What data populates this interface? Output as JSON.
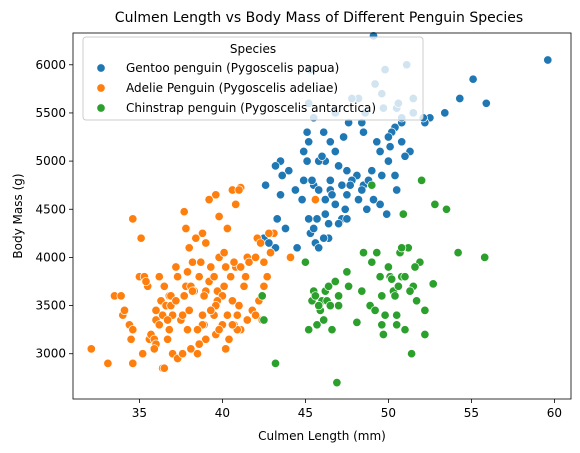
{
  "chart_data": {
    "type": "scatter",
    "title": "Culmen Length vs Body Mass of Different Penguin Species",
    "xlabel": "Culmen Length (mm)",
    "ylabel": "Body Mass (g)",
    "xlim": [
      31,
      61
    ],
    "ylim": [
      2530,
      6330
    ],
    "xticks": [
      35,
      40,
      45,
      50,
      55,
      60
    ],
    "yticks": [
      3000,
      3500,
      4000,
      4500,
      5000,
      5500,
      6000
    ],
    "grid": false,
    "legend": {
      "title": "Species",
      "placement": "top-left"
    },
    "series": [
      {
        "name": "Gentoo penguin (Pygoscelis papua)",
        "color": "#1f77b4",
        "points": [
          [
            59.6,
            6050
          ],
          [
            55.1,
            5850
          ],
          [
            55.9,
            5600
          ],
          [
            54.3,
            5650
          ],
          [
            53.4,
            5500
          ],
          [
            52.5,
            5450
          ],
          [
            52.2,
            5400
          ],
          [
            51.1,
            6000
          ],
          [
            51.5,
            5500
          ],
          [
            50.8,
            5400
          ],
          [
            50.5,
            5550
          ],
          [
            50.4,
            5350
          ],
          [
            49.8,
            5950
          ],
          [
            49.6,
            5700
          ],
          [
            49.1,
            6300
          ],
          [
            49.2,
            5800
          ],
          [
            48.6,
            5500
          ],
          [
            48.4,
            5400
          ],
          [
            48.2,
            5650
          ],
          [
            47.6,
            5400
          ],
          [
            47.8,
            5650
          ],
          [
            47.3,
            5250
          ],
          [
            46.8,
            5500
          ],
          [
            46.5,
            5200
          ],
          [
            46.1,
            5300
          ],
          [
            45.5,
            5450
          ],
          [
            45.2,
            5600
          ],
          [
            45.3,
            5950
          ],
          [
            45.1,
            5300
          ],
          [
            45.2,
            5200
          ],
          [
            45.1,
            5000
          ],
          [
            44.9,
            5100
          ],
          [
            44.0,
            4900
          ],
          [
            43.5,
            5000
          ],
          [
            43.2,
            4950
          ],
          [
            42.6,
            4750
          ],
          [
            43.6,
            4850
          ],
          [
            43.5,
            4650
          ],
          [
            43.3,
            4400
          ],
          [
            44.9,
            4800
          ],
          [
            45.5,
            4750
          ],
          [
            45.8,
            4700
          ],
          [
            46.2,
            4600
          ],
          [
            46.5,
            4700
          ],
          [
            47.2,
            4750
          ],
          [
            47.5,
            4900
          ],
          [
            48.1,
            4850
          ],
          [
            48.5,
            4750
          ],
          [
            49.0,
            4900
          ],
          [
            49.5,
            5100
          ],
          [
            50.0,
            5000
          ],
          [
            50.2,
            5300
          ],
          [
            50.8,
            5200
          ],
          [
            50.1,
            5150
          ],
          [
            51.3,
            5100
          ],
          [
            49.3,
            5200
          ],
          [
            46.8,
            5100
          ],
          [
            46.2,
            5000
          ],
          [
            45.8,
            5000
          ],
          [
            46.0,
            5050
          ],
          [
            47.0,
            4950
          ],
          [
            47.8,
            4800
          ],
          [
            48.4,
            4700
          ],
          [
            47.5,
            4650
          ],
          [
            48.7,
            4500
          ],
          [
            49.9,
            4450
          ],
          [
            49.5,
            4550
          ],
          [
            50.5,
            4700
          ],
          [
            49.1,
            4600
          ],
          [
            48.2,
            4600
          ],
          [
            47.4,
            4500
          ],
          [
            47.2,
            4400
          ],
          [
            46.2,
            4450
          ],
          [
            45.7,
            4400
          ],
          [
            45.2,
            4400
          ],
          [
            46.4,
            4200
          ],
          [
            45.3,
            4250
          ],
          [
            45.6,
            4150
          ],
          [
            45.5,
            4300
          ],
          [
            44.5,
            4100
          ],
          [
            43.8,
            4300
          ],
          [
            43.2,
            4100
          ],
          [
            42.5,
            4200
          ],
          [
            42.8,
            4150
          ],
          [
            46.1,
            4200
          ],
          [
            45.8,
            4100
          ],
          [
            44.8,
            4600
          ],
          [
            46.4,
            4350
          ],
          [
            47.0,
            4350
          ],
          [
            45.4,
            4800
          ],
          [
            46.6,
            4650
          ],
          [
            47.7,
            4750
          ],
          [
            48.8,
            4800
          ],
          [
            50.4,
            4850
          ],
          [
            51.0,
            5050
          ],
          [
            50.0,
            5250
          ],
          [
            49.7,
            5550
          ],
          [
            50.6,
            5600
          ],
          [
            50.8,
            5450
          ],
          [
            46.5,
            4800
          ],
          [
            49.6,
            4850
          ],
          [
            44.4,
            4700
          ],
          [
            46.8,
            4550
          ],
          [
            47.5,
            4400
          ],
          [
            48.5,
            5300
          ],
          [
            52.1,
            5450
          ],
          [
            51.5,
            5650
          ]
        ]
      },
      {
        "name": "Adelie Penguin (Pygoscelis adeliae)",
        "color": "#ff7f0e",
        "points": [
          [
            32.1,
            3050
          ],
          [
            33.1,
            2900
          ],
          [
            33.5,
            3600
          ],
          [
            34.0,
            3400
          ],
          [
            34.1,
            3450
          ],
          [
            34.4,
            3300
          ],
          [
            34.6,
            3250
          ],
          [
            34.6,
            2900
          ],
          [
            34.6,
            4400
          ],
          [
            35.1,
            4200
          ],
          [
            35.0,
            3800
          ],
          [
            35.3,
            3800
          ],
          [
            35.5,
            3700
          ],
          [
            35.6,
            3150
          ],
          [
            35.7,
            3200
          ],
          [
            35.9,
            3150
          ],
          [
            36.0,
            3100
          ],
          [
            36.0,
            3350
          ],
          [
            36.2,
            3800
          ],
          [
            36.3,
            3550
          ],
          [
            36.4,
            3400
          ],
          [
            36.5,
            3700
          ],
          [
            36.6,
            3500
          ],
          [
            36.7,
            3150
          ],
          [
            36.8,
            3600
          ],
          [
            36.9,
            3500
          ],
          [
            37.0,
            3000
          ],
          [
            37.2,
            3900
          ],
          [
            37.3,
            3800
          ],
          [
            37.5,
            3350
          ],
          [
            37.6,
            3400
          ],
          [
            37.7,
            3600
          ],
          [
            37.8,
            3700
          ],
          [
            37.9,
            3250
          ],
          [
            38.0,
            3450
          ],
          [
            38.1,
            3700
          ],
          [
            38.2,
            3950
          ],
          [
            38.3,
            3650
          ],
          [
            38.6,
            3800
          ],
          [
            38.7,
            3950
          ],
          [
            38.8,
            3400
          ],
          [
            38.9,
            3300
          ],
          [
            39.0,
            3650
          ],
          [
            39.2,
            3750
          ],
          [
            39.3,
            3900
          ],
          [
            39.5,
            3800
          ],
          [
            39.6,
            3500
          ],
          [
            39.7,
            3650
          ],
          [
            39.8,
            4000
          ],
          [
            40.0,
            3600
          ],
          [
            40.1,
            3700
          ],
          [
            40.2,
            3900
          ],
          [
            40.3,
            3400
          ],
          [
            40.5,
            3800
          ],
          [
            40.6,
            3550
          ],
          [
            40.7,
            3300
          ],
          [
            40.8,
            3900
          ],
          [
            40.9,
            3400
          ],
          [
            41.1,
            3900
          ],
          [
            41.3,
            3700
          ],
          [
            41.4,
            3800
          ],
          [
            41.5,
            4000
          ],
          [
            41.6,
            3950
          ],
          [
            41.8,
            3450
          ],
          [
            42.0,
            4000
          ],
          [
            42.1,
            4200
          ],
          [
            42.2,
            3550
          ],
          [
            42.3,
            4150
          ],
          [
            42.5,
            3950
          ],
          [
            42.7,
            3800
          ],
          [
            42.9,
            4050
          ],
          [
            43.1,
            4250
          ],
          [
            44.1,
            4000
          ],
          [
            45.6,
            4600
          ],
          [
            41.1,
            4725
          ],
          [
            39.6,
            4650
          ],
          [
            39.2,
            4600
          ],
          [
            40.6,
            4700
          ],
          [
            41.0,
            4700
          ],
          [
            40.8,
            4550
          ],
          [
            39.8,
            4425
          ],
          [
            38.8,
            4250
          ],
          [
            38.4,
            4200
          ],
          [
            37.7,
            4475
          ],
          [
            37.8,
            4300
          ],
          [
            38.0,
            4100
          ],
          [
            37.9,
            3850
          ],
          [
            36.9,
            3600
          ],
          [
            37.0,
            3400
          ],
          [
            36.2,
            3300
          ],
          [
            36.4,
            2850
          ],
          [
            36.5,
            2850
          ],
          [
            37.3,
            2950
          ],
          [
            38.1,
            3050
          ],
          [
            38.5,
            3000
          ],
          [
            39.6,
            3200
          ],
          [
            40.2,
            3050
          ],
          [
            39.0,
            3150
          ],
          [
            38.8,
            3300
          ],
          [
            38.6,
            3100
          ],
          [
            37.6,
            3000
          ],
          [
            36.8,
            3250
          ],
          [
            35.9,
            3050
          ],
          [
            35.2,
            3000
          ],
          [
            34.5,
            3150
          ],
          [
            33.9,
            3600
          ],
          [
            35.4,
            3750
          ],
          [
            36.0,
            3450
          ],
          [
            36.7,
            3350
          ],
          [
            37.2,
            3550
          ],
          [
            38.9,
            3600
          ],
          [
            39.5,
            3400
          ],
          [
            40.4,
            3150
          ],
          [
            41.1,
            3250
          ],
          [
            40.9,
            3250
          ],
          [
            40.0,
            3300
          ],
          [
            39.8,
            3250
          ],
          [
            41.5,
            3350
          ],
          [
            42.0,
            3400
          ],
          [
            42.5,
            3700
          ],
          [
            42.8,
            4250
          ],
          [
            41.0,
            3500
          ],
          [
            40.6,
            3300
          ],
          [
            39.7,
            3550
          ],
          [
            38.5,
            3250
          ],
          [
            38.2,
            3650
          ],
          [
            40.1,
            4050
          ],
          [
            40.3,
            4300
          ],
          [
            39.0,
            4150
          ],
          [
            39.6,
            3500
          ],
          [
            40.7,
            3950
          ],
          [
            41.4,
            3800
          ],
          [
            42.4,
            3350
          ],
          [
            39.3,
            3450
          ]
        ]
      },
      {
        "name": "Chinstrap penguin (Pygoscelis antarctica)",
        "color": "#2ca02c",
        "points": [
          [
            42.4,
            3600
          ],
          [
            42.5,
            3350
          ],
          [
            43.2,
            2900
          ],
          [
            45.2,
            3250
          ],
          [
            45.4,
            3550
          ],
          [
            45.5,
            3650
          ],
          [
            45.6,
            3600
          ],
          [
            45.7,
            3300
          ],
          [
            45.9,
            3450
          ],
          [
            46.0,
            3550
          ],
          [
            46.1,
            3350
          ],
          [
            46.2,
            3650
          ],
          [
            46.4,
            3700
          ],
          [
            46.6,
            3250
          ],
          [
            46.8,
            3750
          ],
          [
            46.9,
            2700
          ],
          [
            47.0,
            3600
          ],
          [
            47.5,
            3850
          ],
          [
            47.6,
            3700
          ],
          [
            48.1,
            3325
          ],
          [
            48.5,
            4050
          ],
          [
            48.9,
            3500
          ],
          [
            49.0,
            3950
          ],
          [
            49.2,
            3450
          ],
          [
            49.3,
            4050
          ],
          [
            49.5,
            3800
          ],
          [
            49.7,
            3200
          ],
          [
            50.1,
            3800
          ],
          [
            50.3,
            3650
          ],
          [
            50.5,
            3400
          ],
          [
            50.6,
            3700
          ],
          [
            50.8,
            3800
          ],
          [
            51.0,
            3800
          ],
          [
            51.2,
            4100
          ],
          [
            51.3,
            3650
          ],
          [
            51.4,
            3000
          ],
          [
            51.5,
            3700
          ],
          [
            51.7,
            3550
          ],
          [
            52.0,
            4800
          ],
          [
            52.2,
            3450
          ],
          [
            52.7,
            3725
          ],
          [
            52.8,
            4550
          ],
          [
            53.5,
            4500
          ],
          [
            54.2,
            4050
          ],
          [
            55.8,
            4000
          ],
          [
            50.9,
            4450
          ],
          [
            49.0,
            4750
          ],
          [
            50.0,
            3900
          ],
          [
            49.8,
            3400
          ],
          [
            50.7,
            4050
          ],
          [
            51.0,
            3250
          ],
          [
            48.4,
            3650
          ],
          [
            47.0,
            3500
          ],
          [
            46.0,
            3550
          ],
          [
            45.0,
            3950
          ],
          [
            49.6,
            3600
          ],
          [
            50.2,
            3775
          ],
          [
            51.9,
            3950
          ],
          [
            50.4,
            3600
          ],
          [
            52.2,
            3200
          ],
          [
            46.3,
            3550
          ],
          [
            45.8,
            3500
          ],
          [
            51.6,
            3900
          ],
          [
            50.8,
            4100
          ],
          [
            49.6,
            3300
          ],
          [
            51.3,
            3650
          ],
          [
            46.5,
            3500
          ],
          [
            50.5,
            3300
          ]
        ]
      }
    ]
  }
}
